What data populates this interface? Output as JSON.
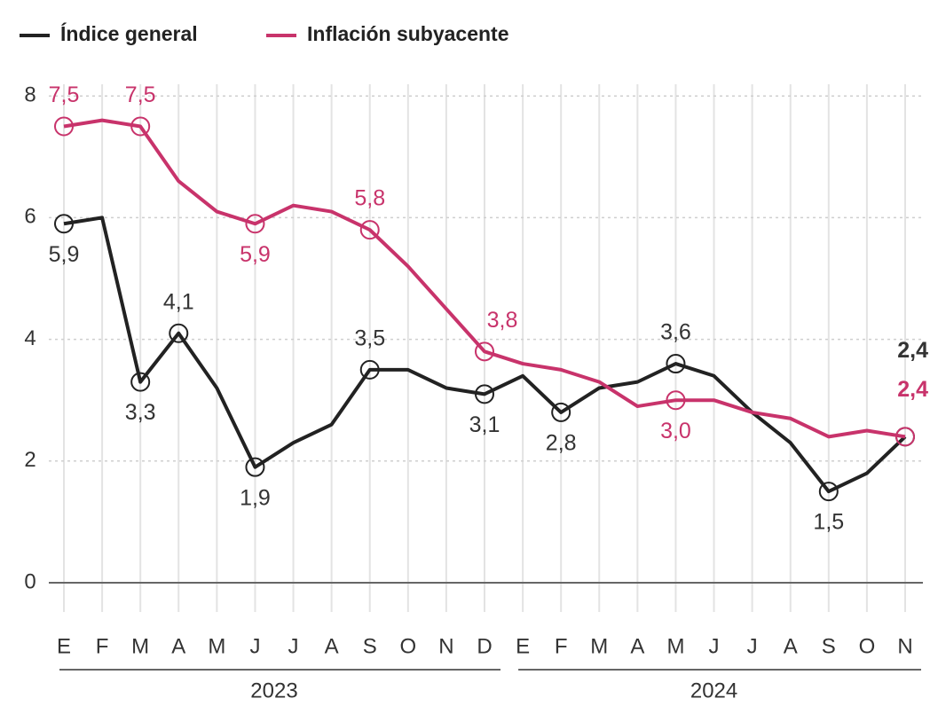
{
  "chart_data": {
    "type": "line",
    "categories": [
      "E",
      "F",
      "M",
      "A",
      "M",
      "J",
      "J",
      "A",
      "S",
      "O",
      "N",
      "D",
      "E",
      "F",
      "M",
      "A",
      "M",
      "J",
      "J",
      "A",
      "S",
      "O",
      "N"
    ],
    "year_groups": [
      {
        "label": "2023",
        "start": 0
      },
      {
        "label": "2024",
        "start": 12
      }
    ],
    "series": [
      {
        "name": "Índice general",
        "color": "#222222",
        "values": [
          5.9,
          6.0,
          3.3,
          4.1,
          3.2,
          1.9,
          2.3,
          2.6,
          3.5,
          3.5,
          3.2,
          3.1,
          3.4,
          2.8,
          3.2,
          3.3,
          3.6,
          3.4,
          2.8,
          2.3,
          1.5,
          1.8,
          2.4
        ],
        "value_labels": [
          "5,9",
          null,
          "3,3",
          "4,1",
          null,
          "1,9",
          null,
          null,
          "3,5",
          null,
          null,
          "3,1",
          null,
          "2,8",
          null,
          null,
          "3,6",
          null,
          null,
          null,
          "1,5",
          null,
          "2,4"
        ]
      },
      {
        "name": "Inflación subyacente",
        "color": "#c8336b",
        "values": [
          7.5,
          7.6,
          7.5,
          6.6,
          6.1,
          5.9,
          6.2,
          6.1,
          5.8,
          5.2,
          4.5,
          3.8,
          3.6,
          3.5,
          3.3,
          2.9,
          3.0,
          3.0,
          2.8,
          2.7,
          2.4,
          2.5,
          2.4
        ],
        "value_labels": [
          "7,5",
          null,
          "7,5",
          null,
          null,
          "5,9",
          null,
          null,
          "5,8",
          null,
          null,
          "3,8",
          null,
          null,
          null,
          null,
          "3,0",
          null,
          null,
          null,
          null,
          null,
          "2,4"
        ]
      }
    ],
    "ylim": [
      0,
      8.1
    ],
    "yticks": [
      0,
      2,
      4,
      6,
      8
    ],
    "grid": true,
    "legend": "top-left"
  }
}
